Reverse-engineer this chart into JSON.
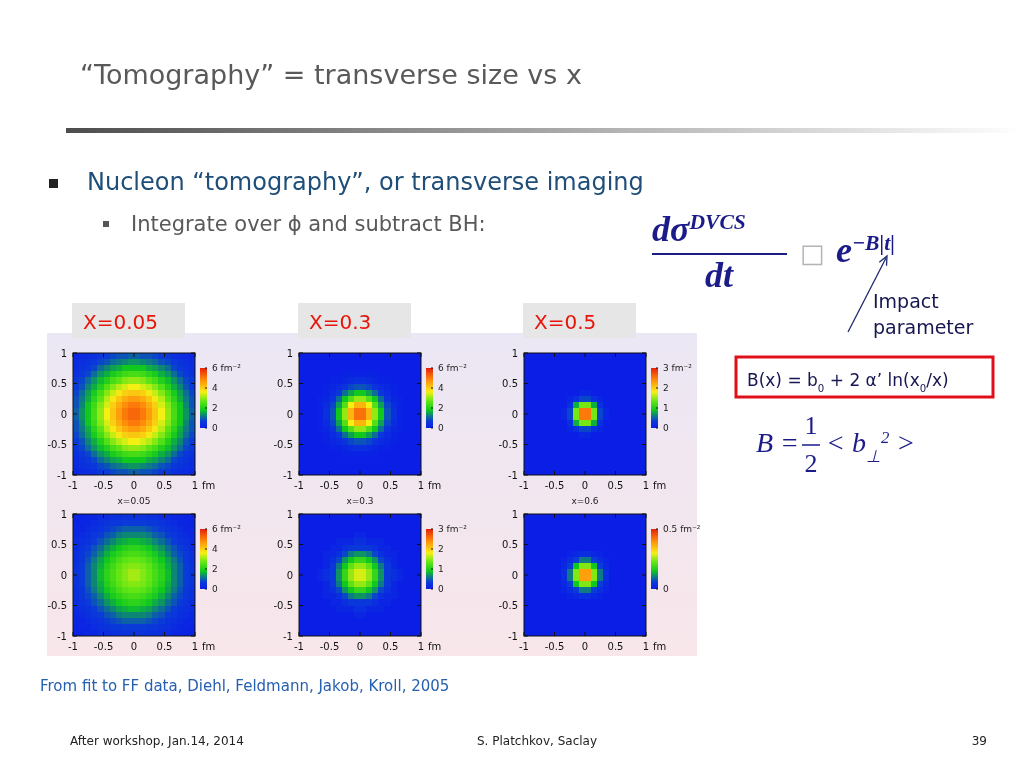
{
  "chart_data": [
    {
      "type": "other",
      "title": "“Tomography” = transverse size vs x",
      "annotations": [
        "Nucleon “tomography”, or transverse imaging",
        "Integrate over ϕ and subtract BH:",
        "dσ$^{DVCS}$",
        "dt",
        "□",
        "e$^{−B|t|}$",
        "Impact parameter",
        "B(x) = b$_{0}$ + 2 α’ ln(x$_{0}$/x)",
        "B =",
        "1",
        "2",
        "< b$_{⊥}$$^{2}$ >",
        "From fit to FF data, Diehl, Feldmann, Jakob, Kroll, 2005",
        "After workshop, Jan.14, 2014",
        "S. Platchkov, Saclay",
        "39"
      ]
    },
    {
      "type": "heatmap",
      "title": "X=0.05",
      "xlabel": "fm",
      "xlim": [
        -1,
        1
      ],
      "ylim": [
        -1,
        1
      ],
      "xticks": [
        -1,
        -0.5,
        0,
        0.5,
        1
      ],
      "yticks": [
        -1,
        -0.5,
        0,
        0.5,
        1
      ],
      "clim": [
        0,
        6
      ],
      "cticks": [
        0,
        2,
        4,
        {
          "value": 6,
          "label": "6 fm⁻²"
        }
      ],
      "cells": [
        [
          0.2,
          0.3,
          0.3,
          0.4,
          0.6,
          0.7,
          0.8,
          0.9,
          0.9,
          1.0,
          1.0,
          0.9,
          0.9,
          0.8,
          0.7,
          0.6,
          0.4,
          0.3,
          0.3,
          0.2
        ],
        [
          0.3,
          0.4,
          0.5,
          0.6,
          0.8,
          0.9,
          1.1,
          1.2,
          1.3,
          1.4,
          1.4,
          1.3,
          1.2,
          1.1,
          0.9,
          0.8,
          0.6,
          0.5,
          0.4,
          0.3
        ],
        [
          0.3,
          0.5,
          0.6,
          0.8,
          1.1,
          1.3,
          1.5,
          1.6,
          1.8,
          1.8,
          1.8,
          1.8,
          1.6,
          1.5,
          1.3,
          1.1,
          0.8,
          0.6,
          0.5,
          0.3
        ],
        [
          0.4,
          0.6,
          0.8,
          1.1,
          1.4,
          1.6,
          1.9,
          2.1,
          2.3,
          2.4,
          2.4,
          2.3,
          2.1,
          1.9,
          1.6,
          1.4,
          1.1,
          0.8,
          0.6,
          0.4
        ],
        [
          0.6,
          0.8,
          1.1,
          1.4,
          1.7,
          2.0,
          2.4,
          2.6,
          2.9,
          3.0,
          3.0,
          2.9,
          2.6,
          2.4,
          2.0,
          1.7,
          1.4,
          1.1,
          0.8,
          0.6
        ],
        [
          0.7,
          0.9,
          1.3,
          1.6,
          2.0,
          2.5,
          2.9,
          3.2,
          3.4,
          3.6,
          3.6,
          3.4,
          3.2,
          2.9,
          2.5,
          2.0,
          1.6,
          1.3,
          0.9,
          0.7
        ],
        [
          0.8,
          1.1,
          1.5,
          1.9,
          2.4,
          2.9,
          3.3,
          3.7,
          4.0,
          4.1,
          4.1,
          4.0,
          3.7,
          3.3,
          2.9,
          2.4,
          1.9,
          1.5,
          1.1,
          0.8
        ],
        [
          0.9,
          1.2,
          1.6,
          2.1,
          2.6,
          3.2,
          3.7,
          4.1,
          4.4,
          4.6,
          4.6,
          4.4,
          4.1,
          3.7,
          3.2,
          2.6,
          2.1,
          1.6,
          1.2,
          0.9
        ],
        [
          0.9,
          1.3,
          1.8,
          2.3,
          2.9,
          3.4,
          4.0,
          4.4,
          4.8,
          5.0,
          5.0,
          4.8,
          4.4,
          4.0,
          3.4,
          2.9,
          2.3,
          1.8,
          1.3,
          0.9
        ],
        [
          1.0,
          1.4,
          1.8,
          2.4,
          3.0,
          3.6,
          4.1,
          4.6,
          5.0,
          5.2,
          5.2,
          5.0,
          4.6,
          4.1,
          3.6,
          3.0,
          2.4,
          1.8,
          1.4,
          1.0
        ],
        [
          1.0,
          1.4,
          1.8,
          2.4,
          3.0,
          3.6,
          4.1,
          4.6,
          5.0,
          5.2,
          5.2,
          5.0,
          4.6,
          4.1,
          3.6,
          3.0,
          2.4,
          1.8,
          1.4,
          1.0
        ],
        [
          0.9,
          1.3,
          1.8,
          2.3,
          2.9,
          3.4,
          4.0,
          4.4,
          4.8,
          5.0,
          5.0,
          4.8,
          4.4,
          4.0,
          3.4,
          2.9,
          2.3,
          1.8,
          1.3,
          0.9
        ],
        [
          0.9,
          1.2,
          1.6,
          2.1,
          2.6,
          3.2,
          3.7,
          4.1,
          4.4,
          4.6,
          4.6,
          4.4,
          4.1,
          3.7,
          3.2,
          2.6,
          2.1,
          1.6,
          1.2,
          0.9
        ],
        [
          0.8,
          1.1,
          1.5,
          1.9,
          2.4,
          2.9,
          3.3,
          3.7,
          4.0,
          4.1,
          4.1,
          4.0,
          3.7,
          3.3,
          2.9,
          2.4,
          1.9,
          1.5,
          1.1,
          0.8
        ],
        [
          0.7,
          0.9,
          1.3,
          1.6,
          2.0,
          2.5,
          2.9,
          3.2,
          3.4,
          3.6,
          3.6,
          3.4,
          3.2,
          2.9,
          2.5,
          2.0,
          1.6,
          1.3,
          0.9,
          0.7
        ],
        [
          0.6,
          0.8,
          1.1,
          1.4,
          1.7,
          2.0,
          2.4,
          2.6,
          2.9,
          3.0,
          3.0,
          2.9,
          2.6,
          2.4,
          2.0,
          1.7,
          1.4,
          1.1,
          0.8,
          0.6
        ],
        [
          0.4,
          0.6,
          0.8,
          1.1,
          1.4,
          1.6,
          1.9,
          2.1,
          2.3,
          2.4,
          2.4,
          2.3,
          2.1,
          1.9,
          1.6,
          1.4,
          1.1,
          0.8,
          0.6,
          0.4
        ],
        [
          0.3,
          0.5,
          0.6,
          0.8,
          1.1,
          1.3,
          1.5,
          1.6,
          1.8,
          1.8,
          1.8,
          1.8,
          1.6,
          1.5,
          1.3,
          1.1,
          0.8,
          0.6,
          0.5,
          0.3
        ],
        [
          0.3,
          0.4,
          0.5,
          0.6,
          0.8,
          0.9,
          1.1,
          1.2,
          1.3,
          1.4,
          1.4,
          1.3,
          1.2,
          1.1,
          0.9,
          0.8,
          0.6,
          0.5,
          0.4,
          0.3
        ],
        [
          0.2,
          0.3,
          0.3,
          0.4,
          0.6,
          0.7,
          0.8,
          0.9,
          0.9,
          1.0,
          1.0,
          0.9,
          0.9,
          0.8,
          0.7,
          0.6,
          0.4,
          0.3,
          0.3,
          0.2
        ]
      ]
    },
    {
      "type": "heatmap",
      "title": "X=0.3",
      "xlabel": "fm",
      "xlim": [
        -1,
        1
      ],
      "ylim": [
        -1,
        1
      ],
      "xticks": [
        -1,
        -0.5,
        0,
        0.5,
        1
      ],
      "yticks": [
        -1,
        -0.5,
        0,
        0.5,
        1
      ],
      "clim": [
        0,
        6
      ],
      "cticks": [
        0,
        2,
        4,
        {
          "value": 6,
          "label": "6 fm⁻²"
        }
      ],
      "cells": [
        [
          0,
          0,
          0,
          0,
          0,
          0,
          0,
          0,
          0,
          0,
          0,
          0,
          0,
          0,
          0,
          0,
          0,
          0,
          0,
          0
        ],
        [
          0,
          0,
          0,
          0,
          0,
          0,
          0,
          0,
          0,
          0,
          0,
          0,
          0,
          0,
          0,
          0,
          0,
          0,
          0,
          0
        ],
        [
          0,
          0,
          0,
          0,
          0,
          0,
          0,
          0,
          0,
          0,
          0,
          0,
          0,
          0,
          0,
          0,
          0,
          0,
          0,
          0
        ],
        [
          0,
          0,
          0,
          0,
          0,
          0,
          0,
          0.1,
          0.1,
          0.1,
          0.1,
          0.1,
          0.1,
          0,
          0,
          0,
          0,
          0,
          0,
          0
        ],
        [
          0,
          0,
          0,
          0,
          0,
          0.1,
          0.1,
          0.2,
          0.3,
          0.4,
          0.4,
          0.3,
          0.2,
          0.1,
          0.1,
          0,
          0,
          0,
          0,
          0
        ],
        [
          0,
          0,
          0,
          0,
          0.1,
          0.2,
          0.3,
          0.5,
          0.8,
          0.9,
          0.9,
          0.8,
          0.5,
          0.3,
          0.2,
          0.1,
          0,
          0,
          0,
          0
        ],
        [
          0,
          0,
          0,
          0,
          0.1,
          0.3,
          0.6,
          1.1,
          1.5,
          1.8,
          1.8,
          1.5,
          1.1,
          0.6,
          0.3,
          0.1,
          0,
          0,
          0,
          0
        ],
        [
          0,
          0,
          0,
          0.1,
          0.2,
          0.5,
          1.1,
          1.8,
          2.5,
          3.0,
          3.0,
          2.5,
          1.8,
          1.1,
          0.5,
          0.2,
          0.1,
          0,
          0,
          0
        ],
        [
          0,
          0,
          0,
          0.1,
          0.3,
          0.8,
          1.5,
          2.5,
          3.6,
          4.3,
          4.3,
          3.6,
          2.5,
          1.5,
          0.8,
          0.3,
          0.1,
          0,
          0,
          0
        ],
        [
          0,
          0,
          0,
          0.1,
          0.4,
          0.9,
          1.8,
          3.0,
          4.3,
          5.1,
          5.1,
          4.3,
          3.0,
          1.8,
          0.9,
          0.4,
          0.1,
          0,
          0,
          0
        ],
        [
          0,
          0,
          0,
          0.1,
          0.4,
          0.9,
          1.8,
          3.0,
          4.3,
          5.1,
          5.1,
          4.3,
          3.0,
          1.8,
          0.9,
          0.4,
          0.1,
          0,
          0,
          0
        ],
        [
          0,
          0,
          0,
          0.1,
          0.3,
          0.8,
          1.5,
          2.5,
          3.6,
          4.3,
          4.3,
          3.6,
          2.5,
          1.5,
          0.8,
          0.3,
          0.1,
          0,
          0,
          0
        ],
        [
          0,
          0,
          0,
          0.1,
          0.2,
          0.5,
          1.1,
          1.8,
          2.5,
          3.0,
          3.0,
          2.5,
          1.8,
          1.1,
          0.5,
          0.2,
          0.1,
          0,
          0,
          0
        ],
        [
          0,
          0,
          0,
          0,
          0.1,
          0.3,
          0.6,
          1.1,
          1.5,
          1.8,
          1.8,
          1.5,
          1.1,
          0.6,
          0.3,
          0.1,
          0,
          0,
          0,
          0
        ],
        [
          0,
          0,
          0,
          0,
          0.1,
          0.2,
          0.3,
          0.5,
          0.8,
          0.9,
          0.9,
          0.8,
          0.5,
          0.3,
          0.2,
          0.1,
          0,
          0,
          0,
          0
        ],
        [
          0,
          0,
          0,
          0,
          0,
          0.1,
          0.1,
          0.2,
          0.3,
          0.4,
          0.4,
          0.3,
          0.2,
          0.1,
          0.1,
          0,
          0,
          0,
          0,
          0
        ],
        [
          0,
          0,
          0,
          0,
          0,
          0,
          0,
          0.1,
          0.1,
          0.1,
          0.1,
          0.1,
          0.1,
          0,
          0,
          0,
          0,
          0,
          0,
          0
        ],
        [
          0,
          0,
          0,
          0,
          0,
          0,
          0,
          0,
          0,
          0,
          0,
          0,
          0,
          0,
          0,
          0,
          0,
          0,
          0,
          0
        ],
        [
          0,
          0,
          0,
          0,
          0,
          0,
          0,
          0,
          0,
          0,
          0,
          0,
          0,
          0,
          0,
          0,
          0,
          0,
          0,
          0
        ],
        [
          0,
          0,
          0,
          0,
          0,
          0,
          0,
          0,
          0,
          0,
          0,
          0,
          0,
          0,
          0,
          0,
          0,
          0,
          0,
          0
        ]
      ]
    },
    {
      "type": "heatmap",
      "title": "X=0.5",
      "xlabel": "fm",
      "xlim": [
        -1,
        1
      ],
      "ylim": [
        -1,
        1
      ],
      "xticks": [
        -1,
        -0.5,
        0,
        0.5,
        1
      ],
      "yticks": [
        -1,
        -0.5,
        0,
        0.5,
        1
      ],
      "clim": [
        0,
        3
      ],
      "cticks": [
        0,
        1,
        2,
        {
          "value": 3,
          "label": "3 fm⁻²"
        }
      ],
      "cells": [
        [
          0,
          0,
          0,
          0,
          0,
          0,
          0,
          0,
          0,
          0,
          0,
          0,
          0,
          0,
          0,
          0,
          0,
          0,
          0,
          0
        ],
        [
          0,
          0,
          0,
          0,
          0,
          0,
          0,
          0,
          0,
          0,
          0,
          0,
          0,
          0,
          0,
          0,
          0,
          0,
          0,
          0
        ],
        [
          0,
          0,
          0,
          0,
          0,
          0,
          0,
          0,
          0,
          0,
          0,
          0,
          0,
          0,
          0,
          0,
          0,
          0,
          0,
          0
        ],
        [
          0,
          0,
          0,
          0,
          0,
          0,
          0,
          0,
          0,
          0,
          0,
          0,
          0,
          0,
          0,
          0,
          0,
          0,
          0,
          0
        ],
        [
          0,
          0,
          0,
          0,
          0,
          0,
          0,
          0,
          0,
          0,
          0,
          0,
          0,
          0,
          0,
          0,
          0,
          0,
          0,
          0
        ],
        [
          0,
          0,
          0,
          0,
          0,
          0,
          0,
          0,
          0,
          0,
          0,
          0,
          0,
          0,
          0,
          0,
          0,
          0,
          0,
          0
        ],
        [
          0,
          0,
          0,
          0,
          0,
          0,
          0,
          0,
          0,
          0.1,
          0.1,
          0,
          0,
          0,
          0,
          0,
          0,
          0,
          0,
          0
        ],
        [
          0,
          0,
          0,
          0,
          0,
          0,
          0,
          0.1,
          0.2,
          0.4,
          0.4,
          0.2,
          0.1,
          0,
          0,
          0,
          0,
          0,
          0,
          0
        ],
        [
          0,
          0,
          0,
          0,
          0,
          0,
          0,
          0.2,
          0.8,
          1.4,
          1.4,
          0.8,
          0.2,
          0,
          0,
          0,
          0,
          0,
          0,
          0
        ],
        [
          0,
          0,
          0,
          0,
          0,
          0,
          0.1,
          0.4,
          1.4,
          2.5,
          2.5,
          1.4,
          0.4,
          0.1,
          0,
          0,
          0,
          0,
          0,
          0
        ],
        [
          0,
          0,
          0,
          0,
          0,
          0,
          0.1,
          0.4,
          1.4,
          2.5,
          2.5,
          1.4,
          0.4,
          0.1,
          0,
          0,
          0,
          0,
          0,
          0
        ],
        [
          0,
          0,
          0,
          0,
          0,
          0,
          0,
          0.2,
          0.8,
          1.4,
          1.4,
          0.8,
          0.2,
          0,
          0,
          0,
          0,
          0,
          0,
          0
        ],
        [
          0,
          0,
          0,
          0,
          0,
          0,
          0,
          0.1,
          0.2,
          0.4,
          0.4,
          0.2,
          0.1,
          0,
          0,
          0,
          0,
          0,
          0,
          0
        ],
        [
          0,
          0,
          0,
          0,
          0,
          0,
          0,
          0,
          0,
          0.1,
          0.1,
          0,
          0,
          0,
          0,
          0,
          0,
          0,
          0,
          0
        ],
        [
          0,
          0,
          0,
          0,
          0,
          0,
          0,
          0,
          0,
          0,
          0,
          0,
          0,
          0,
          0,
          0,
          0,
          0,
          0,
          0
        ],
        [
          0,
          0,
          0,
          0,
          0,
          0,
          0,
          0,
          0,
          0,
          0,
          0,
          0,
          0,
          0,
          0,
          0,
          0,
          0,
          0
        ],
        [
          0,
          0,
          0,
          0,
          0,
          0,
          0,
          0,
          0,
          0,
          0,
          0,
          0,
          0,
          0,
          0,
          0,
          0,
          0,
          0
        ],
        [
          0,
          0,
          0,
          0,
          0,
          0,
          0,
          0,
          0,
          0,
          0,
          0,
          0,
          0,
          0,
          0,
          0,
          0,
          0,
          0
        ],
        [
          0,
          0,
          0,
          0,
          0,
          0,
          0,
          0,
          0,
          0,
          0,
          0,
          0,
          0,
          0,
          0,
          0,
          0,
          0,
          0
        ],
        [
          0,
          0,
          0,
          0,
          0,
          0,
          0,
          0,
          0,
          0,
          0,
          0,
          0,
          0,
          0,
          0,
          0,
          0,
          0,
          0
        ]
      ]
    },
    {
      "type": "heatmap",
      "title": "x=0.05",
      "xlabel": "fm",
      "xlim": [
        -1,
        1
      ],
      "ylim": [
        -1,
        1
      ],
      "xticks": [
        -1,
        -0.5,
        0,
        0.5,
        1
      ],
      "yticks": [
        -1,
        -0.5,
        0,
        0.5,
        1
      ],
      "clim": [
        0,
        6
      ],
      "cticks": [
        0,
        2,
        4,
        {
          "value": 6,
          "label": "6 fm⁻²"
        }
      ],
      "cells": [
        [
          0.1,
          0.1,
          0.2,
          0.2,
          0.3,
          0.3,
          0.4,
          0.4,
          0.5,
          0.5,
          0.5,
          0.5,
          0.4,
          0.4,
          0.3,
          0.3,
          0.2,
          0.2,
          0.1,
          0.1
        ],
        [
          0.1,
          0.2,
          0.2,
          0.3,
          0.4,
          0.5,
          0.6,
          0.6,
          0.7,
          0.7,
          0.7,
          0.7,
          0.6,
          0.6,
          0.5,
          0.4,
          0.3,
          0.2,
          0.2,
          0.1
        ],
        [
          0.2,
          0.2,
          0.3,
          0.4,
          0.5,
          0.7,
          0.8,
          0.9,
          1.0,
          1.0,
          1.0,
          1.0,
          0.9,
          0.8,
          0.7,
          0.5,
          0.4,
          0.3,
          0.2,
          0.2
        ],
        [
          0.2,
          0.3,
          0.4,
          0.6,
          0.7,
          0.9,
          1.0,
          1.2,
          1.3,
          1.3,
          1.3,
          1.3,
          1.2,
          1.0,
          0.9,
          0.7,
          0.6,
          0.4,
          0.3,
          0.2
        ],
        [
          0.3,
          0.4,
          0.5,
          0.7,
          0.9,
          1.1,
          1.3,
          1.5,
          1.6,
          1.7,
          1.7,
          1.6,
          1.5,
          1.3,
          1.1,
          0.9,
          0.7,
          0.5,
          0.4,
          0.3
        ],
        [
          0.3,
          0.5,
          0.7,
          0.9,
          1.1,
          1.4,
          1.6,
          1.8,
          2.0,
          2.1,
          2.1,
          2.0,
          1.8,
          1.6,
          1.4,
          1.1,
          0.9,
          0.7,
          0.5,
          0.3
        ],
        [
          0.4,
          0.6,
          0.8,
          1.0,
          1.3,
          1.6,
          1.9,
          2.1,
          2.3,
          2.4,
          2.4,
          2.3,
          2.1,
          1.9,
          1.6,
          1.3,
          1.0,
          0.8,
          0.6,
          0.4
        ],
        [
          0.4,
          0.6,
          0.9,
          1.2,
          1.5,
          1.8,
          2.1,
          2.4,
          2.6,
          2.7,
          2.7,
          2.6,
          2.4,
          2.1,
          1.8,
          1.5,
          1.2,
          0.9,
          0.6,
          0.4
        ],
        [
          0.5,
          0.7,
          1.0,
          1.3,
          1.6,
          2.0,
          2.3,
          2.6,
          2.8,
          2.9,
          2.9,
          2.8,
          2.6,
          2.3,
          2.0,
          1.6,
          1.3,
          1.0,
          0.7,
          0.5
        ],
        [
          0.5,
          0.7,
          1.0,
          1.3,
          1.7,
          2.1,
          2.4,
          2.7,
          2.9,
          3.1,
          3.1,
          2.9,
          2.7,
          2.4,
          2.1,
          1.7,
          1.3,
          1.0,
          0.7,
          0.5
        ],
        [
          0.5,
          0.7,
          1.0,
          1.3,
          1.7,
          2.1,
          2.4,
          2.7,
          2.9,
          3.1,
          3.1,
          2.9,
          2.7,
          2.4,
          2.1,
          1.7,
          1.3,
          1.0,
          0.7,
          0.5
        ],
        [
          0.5,
          0.7,
          1.0,
          1.3,
          1.6,
          2.0,
          2.3,
          2.6,
          2.8,
          2.9,
          2.9,
          2.8,
          2.6,
          2.3,
          2.0,
          1.6,
          1.3,
          1.0,
          0.7,
          0.5
        ],
        [
          0.4,
          0.6,
          0.9,
          1.2,
          1.5,
          1.8,
          2.1,
          2.4,
          2.6,
          2.7,
          2.7,
          2.6,
          2.4,
          2.1,
          1.8,
          1.5,
          1.2,
          0.9,
          0.6,
          0.4
        ],
        [
          0.4,
          0.6,
          0.8,
          1.0,
          1.3,
          1.6,
          1.9,
          2.1,
          2.3,
          2.4,
          2.4,
          2.3,
          2.1,
          1.9,
          1.6,
          1.3,
          1.0,
          0.8,
          0.6,
          0.4
        ],
        [
          0.3,
          0.5,
          0.7,
          0.9,
          1.1,
          1.4,
          1.6,
          1.8,
          2.0,
          2.1,
          2.1,
          2.0,
          1.8,
          1.6,
          1.4,
          1.1,
          0.9,
          0.7,
          0.5,
          0.3
        ],
        [
          0.3,
          0.4,
          0.5,
          0.7,
          0.9,
          1.1,
          1.3,
          1.5,
          1.6,
          1.7,
          1.7,
          1.6,
          1.5,
          1.3,
          1.1,
          0.9,
          0.7,
          0.5,
          0.4,
          0.3
        ],
        [
          0.2,
          0.3,
          0.4,
          0.6,
          0.7,
          0.9,
          1.0,
          1.2,
          1.3,
          1.3,
          1.3,
          1.3,
          1.2,
          1.0,
          0.9,
          0.7,
          0.6,
          0.4,
          0.3,
          0.2
        ],
        [
          0.2,
          0.2,
          0.3,
          0.4,
          0.5,
          0.7,
          0.8,
          0.9,
          1.0,
          1.0,
          1.0,
          1.0,
          0.9,
          0.8,
          0.7,
          0.5,
          0.4,
          0.3,
          0.2,
          0.2
        ],
        [
          0.1,
          0.2,
          0.2,
          0.3,
          0.4,
          0.5,
          0.6,
          0.6,
          0.7,
          0.7,
          0.7,
          0.7,
          0.6,
          0.6,
          0.5,
          0.4,
          0.3,
          0.2,
          0.2,
          0.1
        ],
        [
          0.1,
          0.1,
          0.2,
          0.2,
          0.3,
          0.3,
          0.4,
          0.4,
          0.5,
          0.5,
          0.5,
          0.5,
          0.4,
          0.4,
          0.3,
          0.3,
          0.2,
          0.2,
          0.1,
          0.1
        ]
      ]
    },
    {
      "type": "heatmap",
      "title": "x=0.3",
      "xlabel": "fm",
      "xlim": [
        -1,
        1
      ],
      "ylim": [
        -1,
        1
      ],
      "xticks": [
        -1,
        -0.5,
        0,
        0.5,
        1
      ],
      "yticks": [
        -1,
        -0.5,
        0,
        0.5,
        1
      ],
      "clim": [
        0,
        3
      ],
      "cticks": [
        0,
        1,
        2,
        {
          "value": 3,
          "label": "3 fm⁻²"
        }
      ],
      "cells": [
        [
          0,
          0,
          0,
          0,
          0,
          0,
          0,
          0,
          0,
          0,
          0,
          0,
          0,
          0,
          0,
          0,
          0,
          0,
          0,
          0
        ],
        [
          0,
          0,
          0,
          0,
          0,
          0,
          0,
          0,
          0,
          0,
          0,
          0,
          0,
          0,
          0,
          0,
          0,
          0,
          0,
          0
        ],
        [
          0,
          0,
          0,
          0,
          0,
          0,
          0,
          0,
          0,
          0,
          0,
          0,
          0,
          0,
          0,
          0,
          0,
          0,
          0,
          0
        ],
        [
          0,
          0,
          0,
          0,
          0,
          0,
          0,
          0,
          0,
          0.1,
          0.1,
          0,
          0,
          0,
          0,
          0,
          0,
          0,
          0,
          0
        ],
        [
          0,
          0,
          0,
          0,
          0,
          0,
          0.1,
          0.1,
          0.1,
          0.2,
          0.2,
          0.1,
          0.1,
          0.1,
          0,
          0,
          0,
          0,
          0,
          0
        ],
        [
          0,
          0,
          0,
          0,
          0,
          0.1,
          0.1,
          0.2,
          0.3,
          0.3,
          0.3,
          0.3,
          0.2,
          0.1,
          0.1,
          0,
          0,
          0,
          0,
          0
        ],
        [
          0,
          0,
          0,
          0,
          0.1,
          0.1,
          0.2,
          0.4,
          0.6,
          0.7,
          0.7,
          0.6,
          0.4,
          0.2,
          0.1,
          0.1,
          0,
          0,
          0,
          0
        ],
        [
          0,
          0,
          0,
          0,
          0.1,
          0.2,
          0.4,
          0.7,
          0.9,
          1.1,
          1.1,
          0.9,
          0.7,
          0.4,
          0.2,
          0.1,
          0,
          0,
          0,
          0
        ],
        [
          0,
          0,
          0,
          0,
          0.1,
          0.3,
          0.6,
          0.9,
          1.3,
          1.5,
          1.5,
          1.3,
          0.9,
          0.6,
          0.3,
          0.1,
          0,
          0,
          0,
          0
        ],
        [
          0,
          0,
          0,
          0.1,
          0.2,
          0.3,
          0.7,
          1.1,
          1.5,
          1.7,
          1.7,
          1.5,
          1.1,
          0.7,
          0.3,
          0.2,
          0.1,
          0,
          0,
          0
        ],
        [
          0,
          0,
          0,
          0.1,
          0.2,
          0.3,
          0.7,
          1.1,
          1.5,
          1.7,
          1.7,
          1.5,
          1.1,
          0.7,
          0.3,
          0.2,
          0.1,
          0,
          0,
          0
        ],
        [
          0,
          0,
          0,
          0,
          0.1,
          0.3,
          0.6,
          0.9,
          1.3,
          1.5,
          1.5,
          1.3,
          0.9,
          0.6,
          0.3,
          0.1,
          0,
          0,
          0,
          0
        ],
        [
          0,
          0,
          0,
          0,
          0.1,
          0.2,
          0.4,
          0.7,
          0.9,
          1.1,
          1.1,
          0.9,
          0.7,
          0.4,
          0.2,
          0.1,
          0,
          0,
          0,
          0
        ],
        [
          0,
          0,
          0,
          0,
          0.1,
          0.1,
          0.2,
          0.4,
          0.6,
          0.7,
          0.7,
          0.6,
          0.4,
          0.2,
          0.1,
          0.1,
          0,
          0,
          0,
          0
        ],
        [
          0,
          0,
          0,
          0,
          0,
          0.1,
          0.1,
          0.2,
          0.3,
          0.3,
          0.3,
          0.3,
          0.2,
          0.1,
          0.1,
          0,
          0,
          0,
          0,
          0
        ],
        [
          0,
          0,
          0,
          0,
          0,
          0,
          0.1,
          0.1,
          0.1,
          0.2,
          0.2,
          0.1,
          0.1,
          0.1,
          0,
          0,
          0,
          0,
          0,
          0
        ],
        [
          0,
          0,
          0,
          0,
          0,
          0,
          0,
          0,
          0,
          0.1,
          0.1,
          0,
          0,
          0,
          0,
          0,
          0,
          0,
          0,
          0
        ],
        [
          0,
          0,
          0,
          0,
          0,
          0,
          0,
          0,
          0,
          0,
          0,
          0,
          0,
          0,
          0,
          0,
          0,
          0,
          0,
          0
        ],
        [
          0,
          0,
          0,
          0,
          0,
          0,
          0,
          0,
          0,
          0,
          0,
          0,
          0,
          0,
          0,
          0,
          0,
          0,
          0,
          0
        ],
        [
          0,
          0,
          0,
          0,
          0,
          0,
          0,
          0,
          0,
          0,
          0,
          0,
          0,
          0,
          0,
          0,
          0,
          0,
          0,
          0
        ]
      ]
    },
    {
      "type": "heatmap",
      "title": "x=0.6",
      "xlabel": "fm",
      "xlim": [
        -1,
        1
      ],
      "ylim": [
        -1,
        1
      ],
      "xticks": [
        -1,
        -0.5,
        0,
        0.5,
        1
      ],
      "yticks": [
        -1,
        -0.5,
        0,
        0.5,
        1
      ],
      "clim": [
        0,
        0.5
      ],
      "cticks": [
        0,
        {
          "value": 0.5,
          "label": "0.5 fm⁻²"
        }
      ],
      "cells": [
        [
          0,
          0,
          0,
          0,
          0,
          0,
          0,
          0,
          0,
          0,
          0,
          0,
          0,
          0,
          0,
          0,
          0,
          0,
          0,
          0
        ],
        [
          0,
          0,
          0,
          0,
          0,
          0,
          0,
          0,
          0,
          0,
          0,
          0,
          0,
          0,
          0,
          0,
          0,
          0,
          0,
          0
        ],
        [
          0,
          0,
          0,
          0,
          0,
          0,
          0,
          0,
          0,
          0,
          0,
          0,
          0,
          0,
          0,
          0,
          0,
          0,
          0,
          0
        ],
        [
          0,
          0,
          0,
          0,
          0,
          0,
          0,
          0,
          0,
          0,
          0,
          0,
          0,
          0,
          0,
          0,
          0,
          0,
          0,
          0
        ],
        [
          0,
          0,
          0,
          0,
          0,
          0,
          0,
          0,
          0,
          0,
          0,
          0,
          0,
          0,
          0,
          0,
          0,
          0,
          0,
          0
        ],
        [
          0,
          0,
          0,
          0,
          0,
          0,
          0,
          0,
          0,
          0,
          0,
          0,
          0,
          0,
          0,
          0,
          0,
          0,
          0,
          0
        ],
        [
          0,
          0,
          0,
          0,
          0,
          0,
          0,
          0.01,
          0.02,
          0.03,
          0.03,
          0.02,
          0.01,
          0,
          0,
          0,
          0,
          0,
          0,
          0
        ],
        [
          0,
          0,
          0,
          0,
          0,
          0,
          0.01,
          0.03,
          0.06,
          0.1,
          0.1,
          0.06,
          0.03,
          0.01,
          0,
          0,
          0,
          0,
          0,
          0
        ],
        [
          0,
          0,
          0,
          0,
          0,
          0,
          0.02,
          0.06,
          0.15,
          0.24,
          0.24,
          0.15,
          0.06,
          0.02,
          0,
          0,
          0,
          0,
          0,
          0
        ],
        [
          0,
          0,
          0,
          0,
          0,
          0,
          0.03,
          0.1,
          0.24,
          0.38,
          0.38,
          0.24,
          0.1,
          0.03,
          0,
          0,
          0,
          0,
          0,
          0
        ],
        [
          0,
          0,
          0,
          0,
          0,
          0,
          0.03,
          0.1,
          0.24,
          0.38,
          0.38,
          0.24,
          0.1,
          0.03,
          0,
          0,
          0,
          0,
          0,
          0
        ],
        [
          0,
          0,
          0,
          0,
          0,
          0,
          0.02,
          0.06,
          0.15,
          0.24,
          0.24,
          0.15,
          0.06,
          0.02,
          0,
          0,
          0,
          0,
          0,
          0
        ],
        [
          0,
          0,
          0,
          0,
          0,
          0,
          0.01,
          0.03,
          0.06,
          0.1,
          0.1,
          0.06,
          0.03,
          0.01,
          0,
          0,
          0,
          0,
          0,
          0
        ],
        [
          0,
          0,
          0,
          0,
          0,
          0,
          0,
          0.01,
          0.02,
          0.03,
          0.03,
          0.02,
          0.01,
          0,
          0,
          0,
          0,
          0,
          0,
          0
        ],
        [
          0,
          0,
          0,
          0,
          0,
          0,
          0,
          0,
          0,
          0,
          0,
          0,
          0,
          0,
          0,
          0,
          0,
          0,
          0,
          0
        ],
        [
          0,
          0,
          0,
          0,
          0,
          0,
          0,
          0,
          0,
          0,
          0,
          0,
          0,
          0,
          0,
          0,
          0,
          0,
          0,
          0
        ],
        [
          0,
          0,
          0,
          0,
          0,
          0,
          0,
          0,
          0,
          0,
          0,
          0,
          0,
          0,
          0,
          0,
          0,
          0,
          0,
          0
        ],
        [
          0,
          0,
          0,
          0,
          0,
          0,
          0,
          0,
          0,
          0,
          0,
          0,
          0,
          0,
          0,
          0,
          0,
          0,
          0,
          0
        ],
        [
          0,
          0,
          0,
          0,
          0,
          0,
          0,
          0,
          0,
          0,
          0,
          0,
          0,
          0,
          0,
          0,
          0,
          0,
          0,
          0
        ],
        [
          0,
          0,
          0,
          0,
          0,
          0,
          0,
          0,
          0,
          0,
          0,
          0,
          0,
          0,
          0,
          0,
          0,
          0,
          0,
          0
        ]
      ]
    }
  ]
}
